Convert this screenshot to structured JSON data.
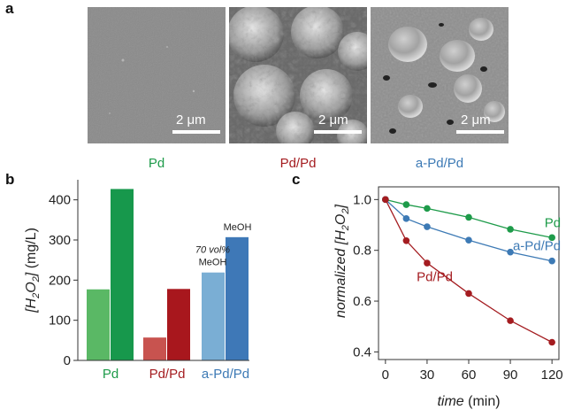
{
  "panels": {
    "a": "a",
    "b": "b",
    "c": "c"
  },
  "sem": {
    "scalebar_text": "2 μm",
    "labels": [
      {
        "text": "Pd",
        "color": "#1e9b4a"
      },
      {
        "text": "Pd/Pd",
        "color": "#a41c20"
      },
      {
        "text": "a-Pd/Pd",
        "color": "#3d7ab5"
      }
    ]
  },
  "chart_data": [
    {
      "type": "bar",
      "ylabel_parts": {
        "open": "[",
        "h": "H",
        "sub1": "2",
        "o": "O",
        "sub2": "2",
        "close": "]",
        "unit": " (mg/L)"
      },
      "ylim": [
        0,
        450
      ],
      "yticks": [
        "0",
        "100",
        "200",
        "300",
        "400"
      ],
      "yticks_values": [
        0,
        100,
        200,
        300,
        400
      ],
      "categories": [
        "Pd",
        "Pd/Pd",
        "a-Pd/Pd"
      ],
      "category_colors": [
        "#1e9b4a",
        "#a41c20",
        "#3d7ab5"
      ],
      "series": [
        {
          "condition": "70 vol% MeOH",
          "values": [
            177,
            57,
            219
          ],
          "colors": [
            "#5ab865",
            "#c8534f",
            "#7aaed4"
          ]
        },
        {
          "condition": "MeOH",
          "values": [
            427,
            178,
            307
          ],
          "colors": [
            "#17984c",
            "#a8171d",
            "#3e78b7"
          ]
        }
      ],
      "annotations": {
        "methanol_70_italic": "70 vol%",
        "methanol_70_plain": "MeOH",
        "methanol_100": "MeOH"
      }
    },
    {
      "type": "line",
      "xlabel_italic": "time",
      "xlabel_unit": " (min)",
      "ylabel_parts": {
        "prefix": "normalized [",
        "h": "H",
        "sub1": "2",
        "o": "O",
        "sub2": "2",
        "close": "]"
      },
      "xlim": [
        -5,
        125
      ],
      "ylim": [
        0.37,
        1.05
      ],
      "xticks": [
        "0",
        "30",
        "60",
        "90",
        "120"
      ],
      "xticks_values": [
        0,
        30,
        60,
        90,
        120
      ],
      "yticks": [
        "0.4",
        "0.6",
        "0.8",
        "1.0"
      ],
      "yticks_values": [
        0.4,
        0.6,
        0.8,
        1.0
      ],
      "series": [
        {
          "name": "Pd",
          "color": "#1e9b4a",
          "x": [
            0,
            15,
            30,
            60,
            90,
            120
          ],
          "y": [
            1.0,
            0.98,
            0.965,
            0.93,
            0.883,
            0.85
          ]
        },
        {
          "name": "a-Pd/Pd",
          "color": "#3d7ab5",
          "x": [
            0,
            15,
            30,
            60,
            90,
            120
          ],
          "y": [
            1.0,
            0.925,
            0.893,
            0.84,
            0.793,
            0.758
          ]
        },
        {
          "name": "Pd/Pd",
          "color": "#a41c20",
          "x": [
            0,
            15,
            30,
            60,
            90,
            120
          ],
          "y": [
            1.0,
            0.838,
            0.75,
            0.63,
            0.523,
            0.438
          ]
        }
      ]
    }
  ]
}
